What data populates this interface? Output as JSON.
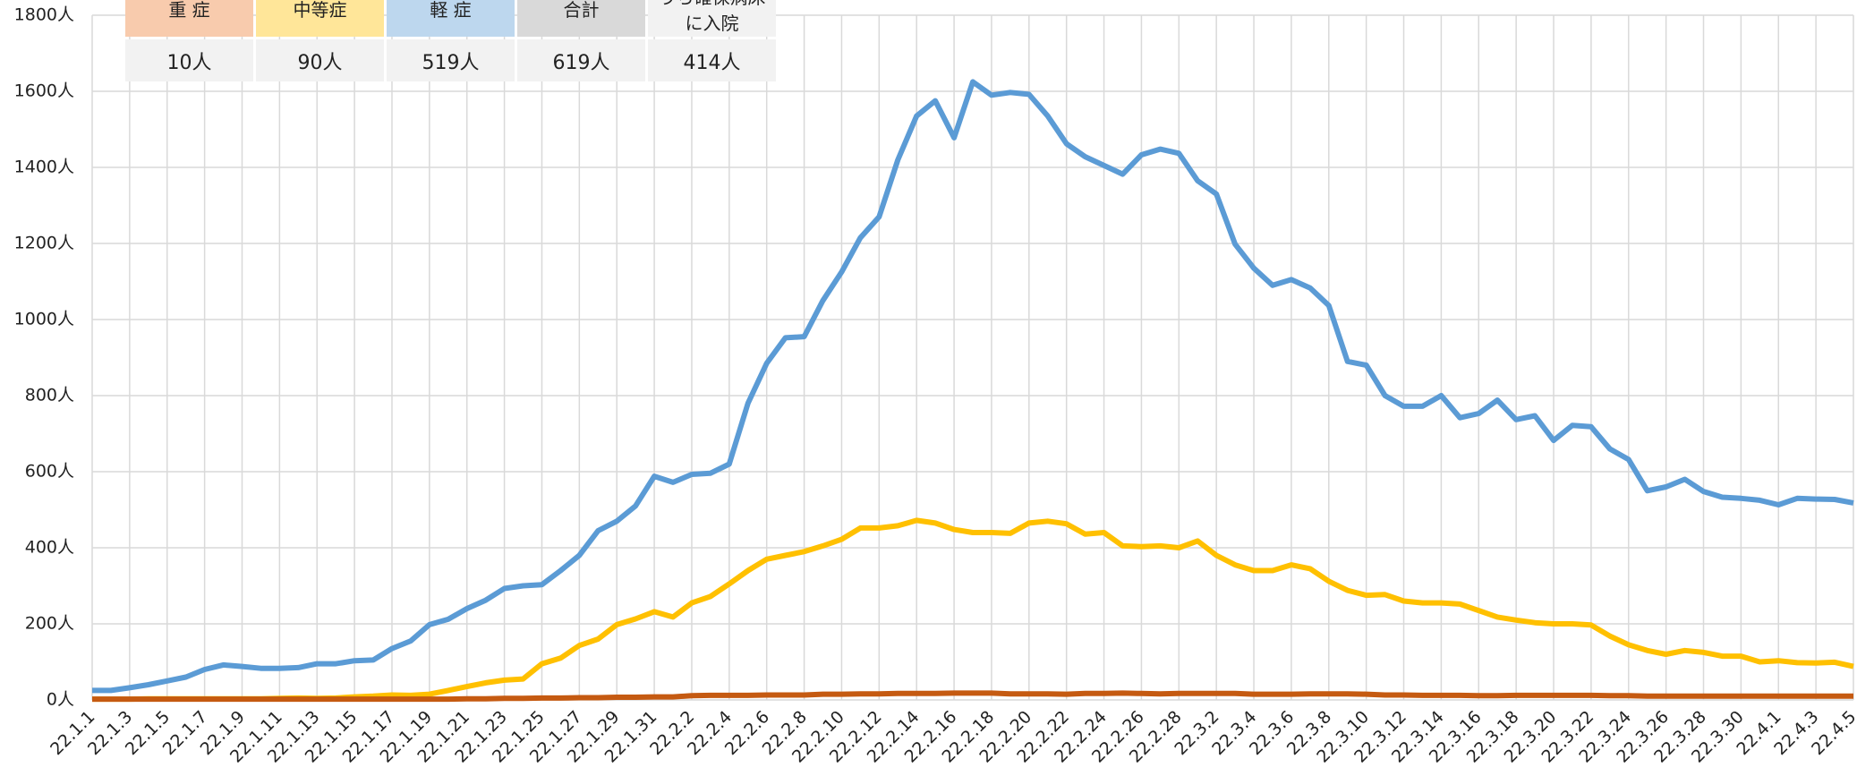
{
  "chart_data": {
    "type": "line",
    "categories": [
      "22.1.1",
      null,
      "22.1.3",
      null,
      "22.1.5",
      null,
      "22.1.7",
      null,
      "22.1.9",
      null,
      "22.1.11",
      null,
      "22.1.13",
      null,
      "22.1.15",
      null,
      "22.1.17",
      null,
      "22.1.19",
      null,
      "22.1.21",
      null,
      "22.1.23",
      null,
      "22.1.25",
      null,
      "22.1.27",
      null,
      "22.1.29",
      null,
      "22.1.31",
      null,
      "22.2.2",
      null,
      "22.2.4",
      null,
      "22.2.6",
      null,
      "22.2.8",
      null,
      "22.2.10",
      null,
      "22.2.12",
      null,
      "22.2.14",
      null,
      "22.2.16",
      null,
      "22.2.18",
      null,
      "22.2.20",
      null,
      "22.2.22",
      null,
      "22.2.24",
      null,
      "22.2.26",
      null,
      "22.2.28",
      null,
      "22.3.2",
      null,
      "22.3.4",
      null,
      "22.3.6",
      null,
      "22.3.8",
      null,
      "22.3.10",
      null,
      "22.3.12",
      null,
      "22.3.14",
      null,
      "22.3.16",
      null,
      "22.3.18",
      null,
      "22.3.20",
      null,
      "22.3.22",
      null,
      "22.3.24",
      null,
      "22.3.26",
      null,
      "22.3.28",
      null,
      "22.3.30",
      null,
      "22.4.1",
      null,
      "22.4.3",
      null,
      "22.4.5"
    ],
    "series": [
      {
        "color": "#5b9bd5",
        "values": [
          25,
          25,
          32,
          40,
          50,
          60,
          80,
          92,
          88,
          83,
          83,
          85,
          95,
          95,
          103,
          105,
          135,
          155,
          198,
          212,
          240,
          262,
          293,
          300,
          303,
          340,
          380,
          445,
          470,
          510,
          588,
          572,
          593,
          596,
          620,
          780,
          885,
          952,
          955,
          1050,
          1125,
          1215,
          1270,
          1420,
          1535,
          1575,
          1478,
          1625,
          1590,
          1597,
          1592,
          1535,
          1462,
          1428,
          1405,
          1382,
          1433,
          1448,
          1437,
          1365,
          1330,
          1198,
          1135,
          1090,
          1105,
          1083,
          1037,
          890,
          880,
          800,
          772,
          772,
          800,
          742,
          753,
          788,
          737,
          747,
          682,
          722,
          718,
          660,
          632,
          550,
          560,
          580,
          548,
          533,
          530,
          525,
          513,
          530,
          528,
          527,
          518
        ]
      },
      {
        "color": "#ffc000",
        "values": [
          2,
          2,
          2,
          3,
          3,
          3,
          3,
          3,
          3,
          3,
          4,
          5,
          4,
          5,
          8,
          10,
          13,
          12,
          15,
          25,
          35,
          45,
          52,
          55,
          95,
          110,
          143,
          160,
          198,
          213,
          232,
          218,
          255,
          272,
          305,
          340,
          370,
          380,
          390,
          405,
          422,
          452,
          452,
          458,
          472,
          465,
          448,
          440,
          440,
          438,
          465,
          470,
          463,
          436,
          440,
          405,
          403,
          405,
          400,
          418,
          380,
          355,
          340,
          340,
          355,
          345,
          312,
          288,
          275,
          277,
          260,
          255,
          255,
          252,
          235,
          218,
          210,
          203,
          200,
          200,
          197,
          168,
          145,
          130,
          120,
          130,
          125,
          115,
          115,
          100,
          103,
          98,
          97,
          99,
          88
        ]
      },
      {
        "color": "#c55a11",
        "values": [
          2,
          2,
          2,
          2,
          2,
          2,
          2,
          2,
          2,
          2,
          2,
          2,
          2,
          2,
          2,
          2,
          2,
          2,
          2,
          2,
          3,
          3,
          4,
          4,
          5,
          5,
          6,
          6,
          7,
          7,
          8,
          8,
          11,
          12,
          12,
          12,
          13,
          13,
          13,
          15,
          15,
          16,
          16,
          17,
          17,
          17,
          18,
          18,
          18,
          16,
          16,
          16,
          15,
          17,
          17,
          18,
          17,
          16,
          17,
          17,
          17,
          17,
          15,
          15,
          15,
          16,
          16,
          16,
          15,
          13,
          13,
          12,
          12,
          12,
          11,
          11,
          12,
          12,
          12,
          12,
          12,
          11,
          11,
          10,
          10,
          10,
          10,
          10,
          10,
          10,
          10,
          10,
          10,
          10,
          10
        ]
      }
    ],
    "ylim": [
      0,
      1800
    ],
    "yticks": [
      {
        "value": 0,
        "label": "0人"
      },
      {
        "value": 200,
        "label": "200人"
      },
      {
        "value": 400,
        "label": "400人"
      },
      {
        "value": 600,
        "label": "600人"
      },
      {
        "value": 800,
        "label": "800人"
      },
      {
        "value": 1000,
        "label": "1000人"
      },
      {
        "value": 1200,
        "label": "1200人"
      },
      {
        "value": 1400,
        "label": "1400人"
      },
      {
        "value": 1600,
        "label": "1600人"
      },
      {
        "value": 1800,
        "label": "1800人"
      }
    ],
    "grid": true
  },
  "table": {
    "headers": [
      [
        "重 症"
      ],
      [
        "中等症"
      ],
      [
        "軽 症"
      ],
      [
        "合計"
      ],
      [
        "うち確保病床",
        "に入院"
      ]
    ],
    "colors": [
      "#f8cbad",
      "#ffe699",
      "#bdd7ee",
      "#d9d9d9",
      "#f2f2f2"
    ],
    "values": [
      "10人",
      "90人",
      "519人",
      "619人",
      "414人"
    ]
  }
}
